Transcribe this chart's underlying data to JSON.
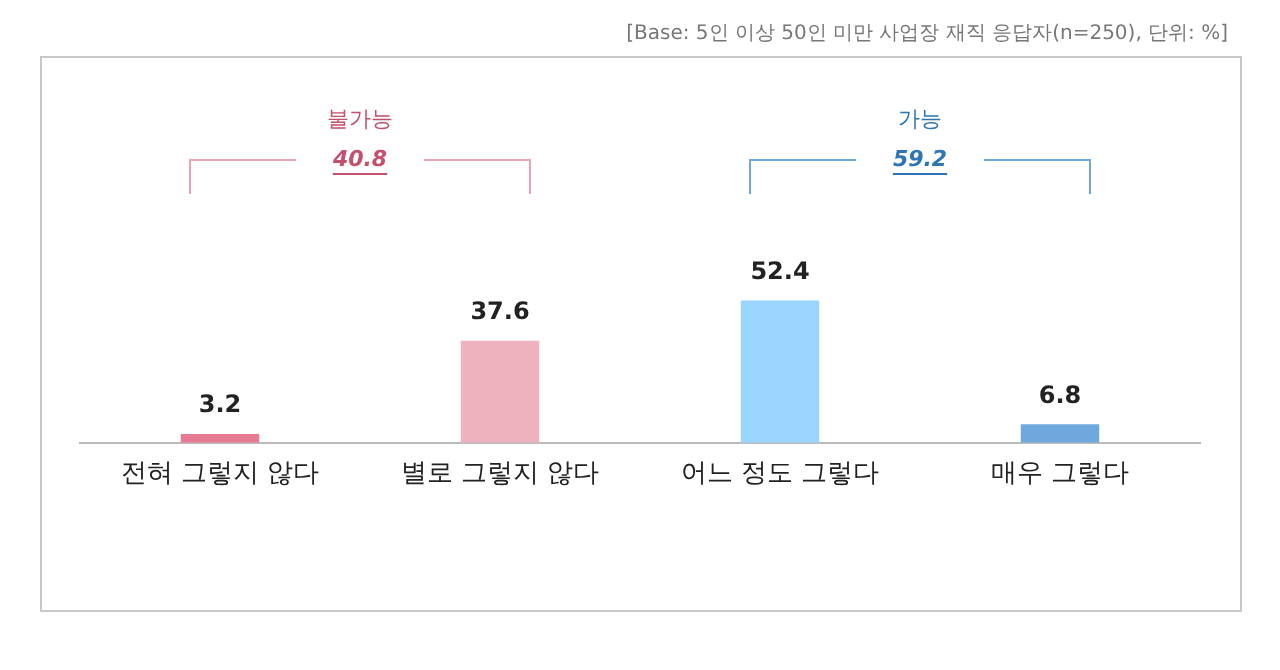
{
  "chart_data": {
    "type": "bar",
    "categories": [
      "전혀 그렇지 않다",
      "별로 그렇지 않다",
      "어느 정도 그렇다",
      "매우 그렇다"
    ],
    "values": [
      3.2,
      37.6,
      52.4,
      6.8
    ],
    "colors": [
      "#e97a94",
      "#eeb2be",
      "#99d5ff",
      "#6fa8dc"
    ],
    "data_labels": true,
    "grid": false,
    "legend": false,
    "annotations": [
      "[Base: 5인 이상 50인 미만 사업장 재직 응답자(n=250), 단위: %]",
      "불가능",
      "40.8",
      "가능",
      "59.2"
    ]
  }
}
